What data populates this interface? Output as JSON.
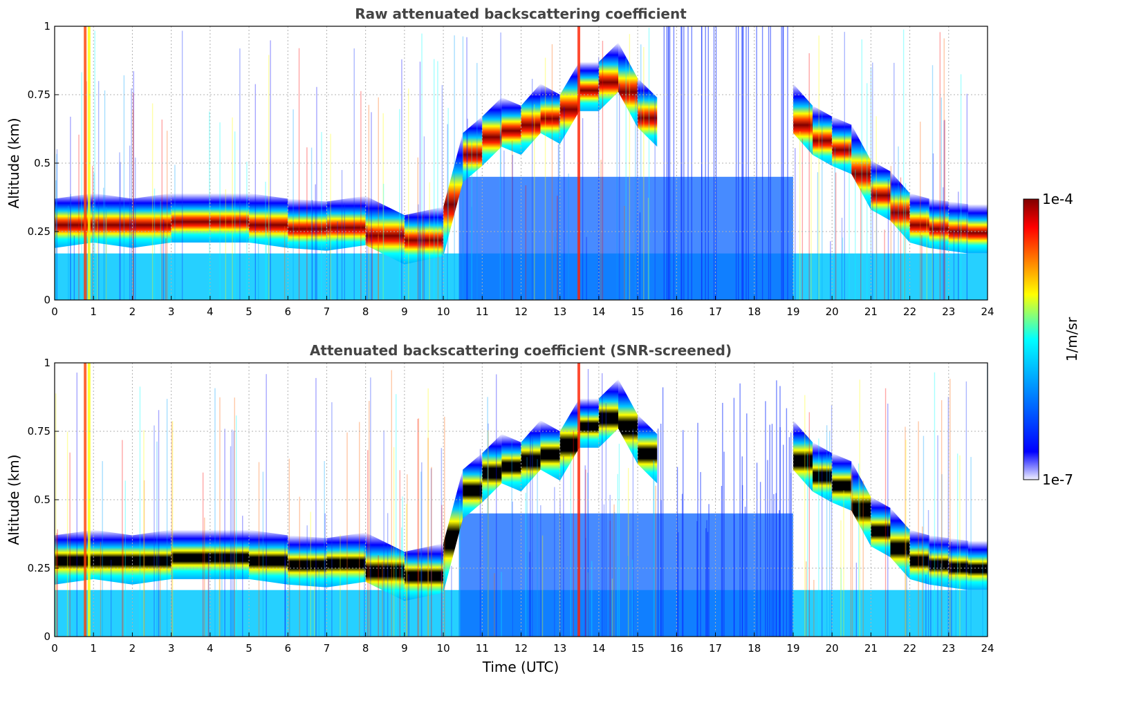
{
  "chart_data": [
    {
      "type": "heatmap",
      "title": "Raw attenuated backscattering coefficient",
      "xlabel": "",
      "ylabel": "Altitude (km)",
      "xlim": [
        0,
        24
      ],
      "ylim": [
        0,
        1
      ],
      "x_ticks": [
        "0",
        "1",
        "2",
        "3",
        "4",
        "5",
        "6",
        "7",
        "8",
        "9",
        "10",
        "11",
        "12",
        "13",
        "14",
        "15",
        "16",
        "17",
        "18",
        "19",
        "20",
        "21",
        "22",
        "23",
        "24"
      ],
      "y_ticks": [
        "0",
        "0.25",
        "0.5",
        "0.75",
        "1"
      ],
      "y_tick_values": [
        0,
        0.25,
        0.5,
        0.75,
        1
      ],
      "grid": true,
      "layer_peak_altitude_km": {
        "time_utc": [
          0,
          1,
          2,
          3,
          4,
          5,
          6,
          7,
          8,
          9,
          10,
          10.5,
          11,
          11.5,
          12,
          12.5,
          13,
          13.5,
          14,
          14.5,
          15,
          15.5,
          19,
          19.5,
          20,
          20.5,
          21,
          21.5,
          22,
          22.5,
          23,
          23.5,
          24
        ],
        "values": [
          0.28,
          0.3,
          0.28,
          0.3,
          0.3,
          0.3,
          0.28,
          0.27,
          0.29,
          0.22,
          0.25,
          0.52,
          0.58,
          0.65,
          0.62,
          0.7,
          0.66,
          0.78,
          0.78,
          0.85,
          0.72,
          0.65,
          0.7,
          0.62,
          0.58,
          0.55,
          0.42,
          0.38,
          0.3,
          0.28,
          0.27,
          0.26,
          0.26
        ]
      }
    },
    {
      "type": "heatmap",
      "title": "Attenuated backscattering coefficient (SNR-screened)",
      "xlabel": "Time (UTC)",
      "ylabel": "Altitude (km)",
      "xlim": [
        0,
        24
      ],
      "ylim": [
        0,
        1
      ],
      "x_ticks": [
        "0",
        "1",
        "2",
        "3",
        "4",
        "5",
        "6",
        "7",
        "8",
        "9",
        "10",
        "11",
        "12",
        "13",
        "14",
        "15",
        "16",
        "17",
        "18",
        "19",
        "20",
        "21",
        "22",
        "23",
        "24"
      ],
      "y_ticks": [
        "0",
        "0.25",
        "0.5",
        "0.75",
        "1"
      ],
      "y_tick_values": [
        0,
        0.25,
        0.5,
        0.75,
        1
      ],
      "grid": true,
      "layer_peak_altitude_km": {
        "time_utc": [
          0,
          1,
          2,
          3,
          4,
          5,
          6,
          7,
          8,
          9,
          10,
          10.5,
          11,
          11.5,
          12,
          12.5,
          13,
          13.5,
          14,
          14.5,
          15,
          15.5,
          19,
          19.5,
          20,
          20.5,
          21,
          21.5,
          22,
          22.5,
          23,
          23.5,
          24
        ],
        "values": [
          0.28,
          0.3,
          0.28,
          0.3,
          0.3,
          0.3,
          0.28,
          0.27,
          0.29,
          0.22,
          0.25,
          0.52,
          0.58,
          0.65,
          0.62,
          0.7,
          0.66,
          0.78,
          0.78,
          0.85,
          0.72,
          0.65,
          0.7,
          0.62,
          0.58,
          0.55,
          0.42,
          0.38,
          0.3,
          0.28,
          0.27,
          0.26,
          0.26
        ]
      }
    }
  ],
  "colorbar": {
    "max_label": "1e-4",
    "min_label": "1e-7",
    "unit_label": "1/m/sr",
    "scale": "log",
    "range": [
      1e-07,
      0.0001
    ],
    "colormap": "jet",
    "colors": [
      "#f0f0ff",
      "#0000ff",
      "#00a0ff",
      "#00ffff",
      "#ffff00",
      "#ff8000",
      "#ff0000",
      "#800000"
    ]
  }
}
